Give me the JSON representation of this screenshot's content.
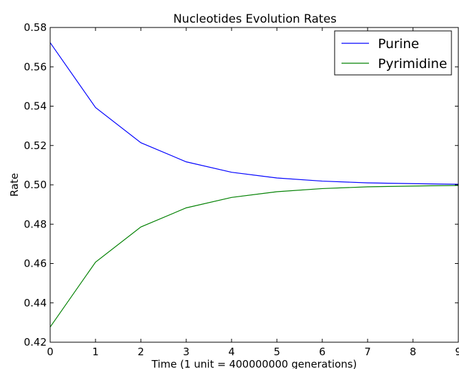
{
  "chart_data": {
    "type": "line",
    "title": "Nucleotides Evolution Rates",
    "xlabel": "Time (1 unit = 400000000 generations)",
    "ylabel": "Rate",
    "xlim": [
      0,
      9
    ],
    "ylim": [
      0.42,
      0.58
    ],
    "x_ticks": [
      "0",
      "1",
      "2",
      "3",
      "4",
      "5",
      "6",
      "7",
      "8",
      "9"
    ],
    "y_ticks": [
      "0.42",
      "0.44",
      "0.46",
      "0.48",
      "0.50",
      "0.52",
      "0.54",
      "0.56",
      "0.58"
    ],
    "grid": false,
    "legend_position": "top-right",
    "x": [
      0,
      1,
      2,
      3,
      4,
      5,
      6,
      7,
      8,
      9
    ],
    "series": [
      {
        "name": "Purine",
        "color": "#0000ff",
        "values": [
          0.5723,
          0.5393,
          0.5214,
          0.5117,
          0.5064,
          0.5035,
          0.5019,
          0.501,
          0.5006,
          0.5003
        ]
      },
      {
        "name": "Pyrimidine",
        "color": "#008000",
        "values": [
          0.4277,
          0.4607,
          0.4786,
          0.4883,
          0.4936,
          0.4965,
          0.4981,
          0.499,
          0.4994,
          0.4997
        ]
      }
    ]
  }
}
